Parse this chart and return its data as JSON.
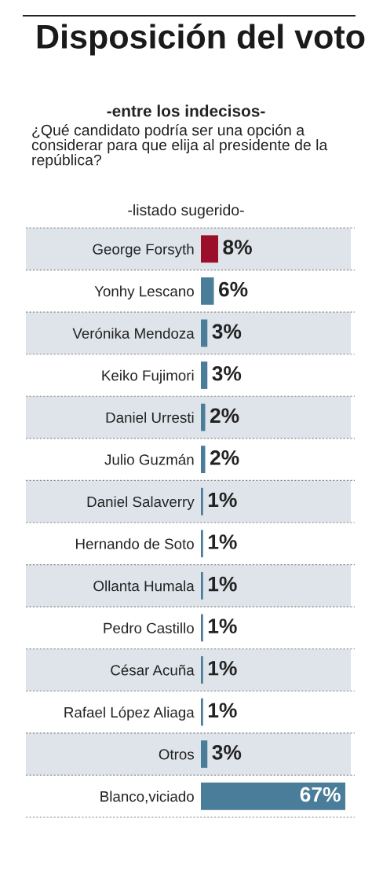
{
  "chart_data": {
    "type": "bar",
    "orientation": "horizontal",
    "title": "Disposición del voto",
    "subtitle": "-entre los indecisos-",
    "annotations": [
      "¿Qué candidato podría ser una opción a considerar para que elija al presidente de la república?",
      "-listado sugerido-"
    ],
    "categories": [
      "George Forsyth",
      "Yonhy Lescano",
      "Verónika Mendoza",
      "Keiko Fujimori",
      "Daniel Urresti",
      "Julio Guzmán",
      "Daniel Salaverry",
      "Hernando de Soto",
      "Ollanta Humala",
      "Pedro Castillo",
      "César Acuña",
      "Rafael López Aliaga",
      "Otros",
      "Blanco,viciado"
    ],
    "values": [
      8,
      6,
      3,
      3,
      2,
      2,
      1,
      1,
      1,
      1,
      1,
      1,
      3,
      67
    ],
    "colors": [
      "#9b0f2a",
      "#4a7d99",
      "#4a7d99",
      "#4a7d99",
      "#4a7d99",
      "#4a7d99",
      "#4a7d99",
      "#4a7d99",
      "#4a7d99",
      "#4a7d99",
      "#4a7d99",
      "#4a7d99",
      "#4a7d99",
      "#4a7d99"
    ],
    "value_labels": [
      "8%",
      "6%",
      "3%",
      "3%",
      "2%",
      "2%",
      "1%",
      "1%",
      "1%",
      "1%",
      "1%",
      "1%",
      "3%",
      "67%"
    ],
    "tick_labels": "y",
    "grid": false,
    "legend": false
  }
}
